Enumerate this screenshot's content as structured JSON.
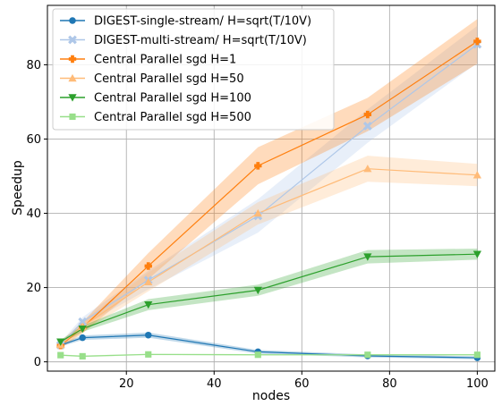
{
  "chart_data": {
    "type": "line",
    "xlabel": "nodes",
    "ylabel": "Speedup",
    "xlim": [
      2,
      104
    ],
    "ylim": [
      -2.5,
      96
    ],
    "x_ticks": [
      20,
      40,
      60,
      80,
      100
    ],
    "y_ticks": [
      0,
      20,
      40,
      60,
      80
    ],
    "grid": true,
    "legend_position": "top-left",
    "series": [
      {
        "name": "DIGEST-single-stream/ H=sqrt(T/10V)",
        "color": "#1f77b4",
        "marker": "circle",
        "line_opacity": 1.0,
        "x": [
          5,
          10,
          25,
          50,
          75,
          100
        ],
        "y": [
          4.5,
          6.5,
          7.2,
          2.7,
          1.6,
          1.1
        ],
        "band": [
          0.4,
          0.6,
          0.7,
          0.5,
          0.4,
          0.4
        ]
      },
      {
        "name": "DIGEST-multi-stream/ H=sqrt(T/10V)",
        "color": "#aec7e8",
        "marker": "x",
        "line_opacity": 1.0,
        "x": [
          5,
          10,
          25,
          50,
          75,
          100
        ],
        "y": [
          4.5,
          10.8,
          22.0,
          39.3,
          63.5,
          85.5
        ],
        "band": [
          0.8,
          1.2,
          2.5,
          4.5,
          4.5,
          5.0
        ]
      },
      {
        "name": "Central Parallel sgd H=1",
        "color": "#ff7f0e",
        "marker": "plus",
        "line_opacity": 1.0,
        "x": [
          5,
          10,
          25,
          50,
          75,
          100
        ],
        "y": [
          4.4,
          9.2,
          25.8,
          52.8,
          66.6,
          86.3
        ],
        "band": [
          0.8,
          1.5,
          3.5,
          5.0,
          4.5,
          6.0
        ]
      },
      {
        "name": "Central Parallel sgd H=50",
        "color": "#ffbb78",
        "marker": "triangle-up",
        "line_opacity": 1.0,
        "x": [
          5,
          10,
          25,
          50,
          75,
          100
        ],
        "y": [
          4.6,
          9.5,
          21.5,
          40.0,
          52.0,
          50.3
        ],
        "band": [
          0.8,
          1.5,
          2.5,
          3.0,
          3.5,
          3.0
        ]
      },
      {
        "name": "Central Parallel sgd H=100",
        "color": "#2ca02c",
        "marker": "triangle-down",
        "line_opacity": 1.0,
        "x": [
          5,
          10,
          25,
          50,
          75,
          100
        ],
        "y": [
          5.4,
          8.9,
          15.4,
          19.3,
          28.3,
          29.0
        ],
        "band": [
          0.5,
          0.8,
          1.5,
          1.5,
          1.8,
          1.5
        ]
      },
      {
        "name": "Central Parallel sgd H=500",
        "color": "#98df8a",
        "marker": "square",
        "line_opacity": 1.0,
        "x": [
          5,
          10,
          25,
          50,
          75,
          100
        ],
        "y": [
          1.8,
          1.5,
          2.0,
          1.9,
          1.9,
          1.9
        ],
        "band": [
          0.2,
          0.2,
          0.2,
          0.2,
          0.2,
          0.2
        ]
      }
    ]
  }
}
